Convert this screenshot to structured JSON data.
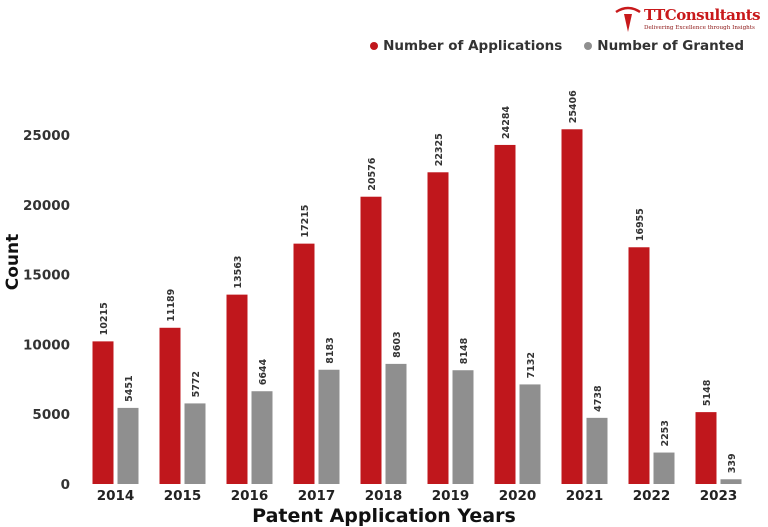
{
  "brand": {
    "name": "TTConsultants",
    "tagline": "Delivering Excellence through Insights",
    "color": "#c8191b"
  },
  "legend": {
    "applications_label": "Number of Applications",
    "granted_label": "Number of Granted"
  },
  "chart_data": {
    "type": "bar",
    "title": "",
    "xlabel": "Patent Application Years",
    "ylabel": "Count",
    "categories": [
      "2014",
      "2015",
      "2016",
      "2017",
      "2018",
      "2019",
      "2020",
      "2021",
      "2022",
      "2023"
    ],
    "series": [
      {
        "name": "Number of Applications",
        "color": "#c0171c",
        "values": [
          10215,
          11189,
          13563,
          17215,
          20576,
          22325,
          24284,
          25406,
          16955,
          5148
        ]
      },
      {
        "name": "Number of Granted",
        "color": "#8f8f8f",
        "values": [
          5451,
          5772,
          6644,
          8183,
          8603,
          8148,
          7132,
          4738,
          2253,
          339
        ]
      }
    ],
    "yticks": [
      0,
      5000,
      10000,
      15000,
      20000,
      25000
    ],
    "ylim": [
      0,
      26500
    ],
    "grid": false,
    "legend_position": "top-right"
  }
}
